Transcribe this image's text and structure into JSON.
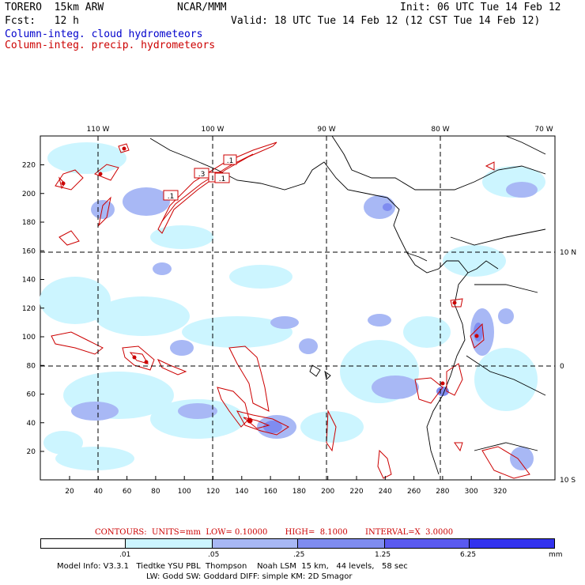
{
  "header": {
    "model": "TORERO  15km ARW",
    "center": "NCAR/MMM",
    "init": "Init: 06 UTC Tue 14 Feb 12",
    "fcst": "Fcst:   12 h",
    "valid": "Valid: 18 UTC Tue 14 Feb 12 (12 CST Tue 14 Feb 12)",
    "field1": "Column-integ. cloud hydrometeors",
    "field2": "Column-integ. precip. hydrometeors"
  },
  "map": {
    "lon_labels": [
      "110 W",
      "100 W",
      "90 W",
      "80 W",
      "70 W"
    ],
    "lat_labels": [
      "10 N",
      "0",
      "10 S"
    ],
    "x_ticks": [
      "20",
      "40",
      "60",
      "80",
      "100",
      "120",
      "140",
      "160",
      "180",
      "200",
      "220",
      "240",
      "260",
      "280",
      "300",
      "320"
    ],
    "y_ticks": [
      "20",
      "40",
      "60",
      "80",
      "100",
      "120",
      "140",
      "160",
      "180",
      "200",
      "220"
    ],
    "contour_labels": [
      ".1",
      ".3",
      ".1",
      ".1",
      ".1"
    ],
    "colors": {
      "cloud_light": "#ccf5ff",
      "cloud_mid": "#a8b8f5",
      "cloud_dark": "#7f8cf0",
      "precip_contour": "#cc0000",
      "coast": "#000000"
    }
  },
  "contours_text": "CONTOURS:  UNITS=mm  LOW= 0.10000       HIGH=  8.1000       INTERVAL=X  3.0000",
  "colorbar": {
    "colors": [
      "#ffffff",
      "#ccf5ff",
      "#a8b8f5",
      "#7f8cf0",
      "#5a5af0",
      "#3333ee"
    ],
    "labels": [
      ".01",
      ".05",
      ".25",
      "1.25",
      "6.25"
    ],
    "units": "mm"
  },
  "footer": {
    "line1": "Model Info: V3.3.1   Tiedtke YSU PBL  Thompson    Noah LSM  15 km,   44 levels,   58 sec",
    "line2": "LW: Godd SW: Goddard DIFF: simple KM: 2D Smagor"
  }
}
